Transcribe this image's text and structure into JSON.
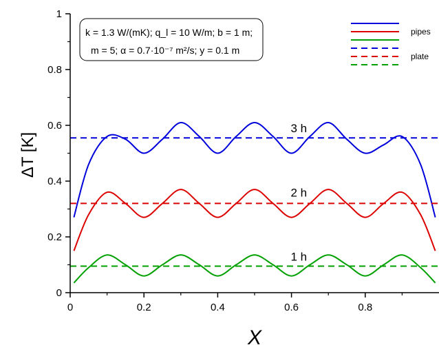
{
  "chart_data": {
    "type": "line",
    "title": "",
    "xlabel": "X",
    "ylabel": "ΔT [K]",
    "xlim": [
      0,
      1
    ],
    "ylim": [
      0,
      1
    ],
    "xticks": [
      0,
      0.2,
      0.4,
      0.6,
      0.8
    ],
    "xtick_labels": [
      "0",
      "0.2",
      "0.4",
      "0.6",
      "0.8"
    ],
    "yticks": [
      0,
      0.2,
      0.4,
      0.6,
      0.8,
      1
    ],
    "ytick_labels": [
      "0",
      "0.2",
      "0.4",
      "0.6",
      "0.8",
      "1"
    ],
    "grid": false,
    "legend_position": "top-right",
    "legend": {
      "pipes_label": "pipes",
      "plate_label": "plate"
    },
    "parameters": {
      "line1": "k = 1.3 W/(mK);  q_l = 10 W/m;  b = 1 m;",
      "line2": "m = 5;  α = 0.7·10⁻⁷ m²/s;  y = 0.1 m"
    },
    "series": [
      {
        "group": "pipes",
        "time": "3 h",
        "color": "#0000dd",
        "style": "solid",
        "x": [
          0.01,
          0.05,
          0.1,
          0.15,
          0.2,
          0.25,
          0.3,
          0.35,
          0.4,
          0.45,
          0.5,
          0.55,
          0.6,
          0.65,
          0.7,
          0.75,
          0.8,
          0.85,
          0.9,
          0.95,
          0.99
        ],
        "y": [
          0.27,
          0.46,
          0.56,
          0.55,
          0.5,
          0.55,
          0.61,
          0.56,
          0.5,
          0.56,
          0.61,
          0.56,
          0.5,
          0.56,
          0.61,
          0.55,
          0.5,
          0.53,
          0.56,
          0.46,
          0.27
        ]
      },
      {
        "group": "pipes",
        "time": "2 h",
        "color": "#dd0000",
        "style": "solid",
        "x": [
          0.01,
          0.05,
          0.1,
          0.15,
          0.2,
          0.25,
          0.3,
          0.35,
          0.4,
          0.45,
          0.5,
          0.55,
          0.6,
          0.65,
          0.7,
          0.75,
          0.8,
          0.85,
          0.9,
          0.95,
          0.99
        ],
        "y": [
          0.15,
          0.28,
          0.36,
          0.32,
          0.27,
          0.32,
          0.37,
          0.32,
          0.27,
          0.32,
          0.37,
          0.32,
          0.27,
          0.32,
          0.37,
          0.32,
          0.27,
          0.32,
          0.36,
          0.28,
          0.15
        ]
      },
      {
        "group": "pipes",
        "time": "1 h",
        "color": "#00a000",
        "style": "solid",
        "x": [
          0.01,
          0.05,
          0.1,
          0.15,
          0.2,
          0.25,
          0.3,
          0.35,
          0.4,
          0.45,
          0.5,
          0.55,
          0.6,
          0.65,
          0.7,
          0.75,
          0.8,
          0.85,
          0.9,
          0.95,
          0.99
        ],
        "y": [
          0.035,
          0.09,
          0.135,
          0.1,
          0.06,
          0.1,
          0.135,
          0.1,
          0.06,
          0.1,
          0.135,
          0.1,
          0.06,
          0.1,
          0.135,
          0.1,
          0.06,
          0.1,
          0.135,
          0.09,
          0.035
        ]
      },
      {
        "group": "plate",
        "time": "3 h",
        "color": "#0000dd",
        "style": "dashed",
        "x": [
          0,
          1
        ],
        "y": [
          0.555,
          0.555
        ]
      },
      {
        "group": "plate",
        "time": "2 h",
        "color": "#dd0000",
        "style": "dashed",
        "x": [
          0,
          1
        ],
        "y": [
          0.32,
          0.32
        ]
      },
      {
        "group": "plate",
        "time": "1 h",
        "color": "#00a000",
        "style": "dashed",
        "x": [
          0,
          1
        ],
        "y": [
          0.095,
          0.095
        ]
      }
    ],
    "annotations": [
      {
        "text": "3 h",
        "x": 0.62,
        "y": 0.575
      },
      {
        "text": "2 h",
        "x": 0.62,
        "y": 0.345
      },
      {
        "text": "1 h",
        "x": 0.62,
        "y": 0.115
      }
    ]
  }
}
